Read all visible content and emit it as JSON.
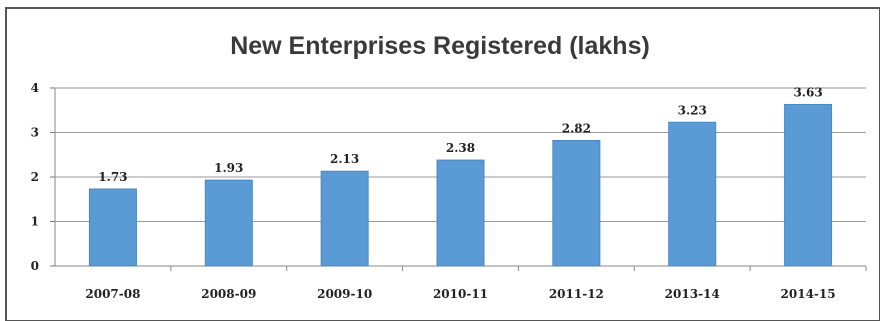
{
  "chart_data": {
    "type": "bar",
    "title": "New Enterprises Registered (lakhs)",
    "categories": [
      "2007-08",
      "2008-09",
      "2009-10",
      "2010-11",
      "2011-12",
      "2013-14",
      "2014-15"
    ],
    "values": [
      1.73,
      1.93,
      2.13,
      2.38,
      2.82,
      3.23,
      3.63
    ],
    "data_labels": [
      "1.73",
      "1.93",
      "2.13",
      "2.38",
      "2.82",
      "3.23",
      "3.63"
    ],
    "xlabel": "",
    "ylabel": "",
    "ylim": [
      0,
      4
    ],
    "yticks": [
      "0",
      "1",
      "2",
      "3",
      "4"
    ],
    "grid": true,
    "legend": "none",
    "colors": {
      "bar": "#5b9bd5",
      "bar_edge": "#4a88c4",
      "grid": "#9a9a9a",
      "frame": "#555555"
    }
  }
}
